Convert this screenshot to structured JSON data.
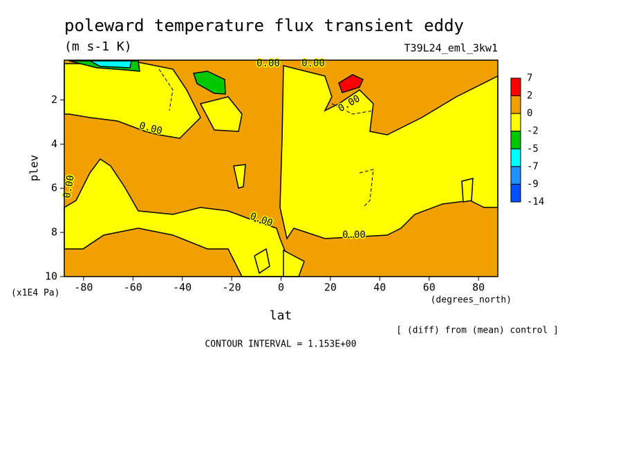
{
  "chart_data": {
    "type": "contour",
    "title": "poleward temperature flux transient eddy",
    "subtitle": "(m s-1 K)",
    "run_label": "T39L24_eml_3kw1",
    "x_label": "lat",
    "x_unit": "(degrees_north)",
    "y_label": "plev",
    "y_unit": "(x1E4 Pa)",
    "xlim": [
      -87.8,
      87.8
    ],
    "xticks": [
      -80,
      -60,
      -40,
      -20,
      0,
      20,
      40,
      60,
      80
    ],
    "ylim": [
      10,
      0.2
    ],
    "yticks": [
      2,
      4,
      6,
      8,
      10
    ],
    "contour_labels": [
      "0.00",
      "0.00",
      "0.00",
      "0.00",
      "0.00",
      "0.00",
      "0.00"
    ],
    "contour_interval": "CONTOUR INTERVAL = 1.153E+00",
    "note": "[ (diff) from (mean) control ]",
    "levels": [
      7,
      2,
      0,
      -2,
      -5,
      -7,
      -9,
      -14
    ],
    "level_colors": [
      "#ff0000",
      "#f0a000",
      "#ffff00",
      "#00c800",
      "#00ffff",
      "#1e90ff",
      "#0050ff"
    ]
  }
}
